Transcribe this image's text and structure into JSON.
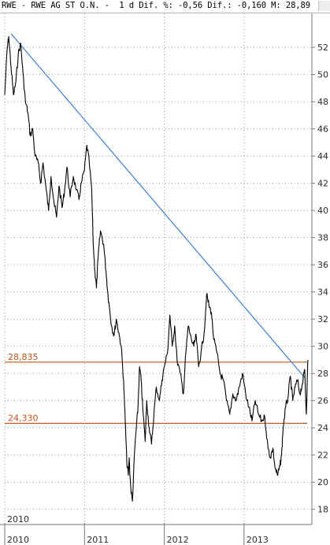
{
  "header": {
    "text": "RWE - RWE AG ST O.N. -  1 d Dif. %: -0,56 Dif.: -0,160 M: 28,89"
  },
  "colors": {
    "price": "#000000",
    "trendline": "#3a7fd5",
    "level": "#c0541a",
    "grid": "#9a9a9a",
    "axis": "#777777"
  },
  "chart_data": {
    "type": "line",
    "title": "",
    "xlabel": "",
    "ylabel": "",
    "ylim": [
      17,
      54.5
    ],
    "xlim": [
      2010.0,
      2013.85
    ],
    "grid": true,
    "y_ticks": [
      18,
      20,
      22,
      24,
      26,
      28,
      30,
      32,
      34,
      36,
      38,
      40,
      42,
      44,
      46,
      48,
      50,
      52
    ],
    "x_ticks": [
      {
        "label": "2010",
        "value": 2010.0
      },
      {
        "label": "2011",
        "value": 2011.0
      },
      {
        "label": "2012",
        "value": 2012.0
      },
      {
        "label": "2013",
        "value": 2013.0
      }
    ],
    "series": [
      {
        "x": [
          2010.0,
          2010.03,
          2010.05,
          2010.08,
          2010.11,
          2010.14,
          2010.17,
          2010.2,
          2010.23,
          2010.26,
          2010.29,
          2010.32,
          2010.35,
          2010.38,
          2010.42,
          2010.45,
          2010.48,
          2010.52,
          2010.55,
          2010.58,
          2010.62,
          2010.65,
          2010.68,
          2010.72,
          2010.75,
          2010.78,
          2010.82,
          2010.86,
          2010.9,
          2010.93,
          2010.96,
          2011.0,
          2011.03,
          2011.06,
          2011.09,
          2011.11,
          2011.13,
          2011.15,
          2011.17,
          2011.2,
          2011.24,
          2011.27,
          2011.29,
          2011.31,
          2011.34,
          2011.37,
          2011.4,
          2011.43,
          2011.46,
          2011.49,
          2011.51,
          2011.53,
          2011.55,
          2011.56,
          2011.58,
          2011.6,
          2011.63,
          2011.65,
          2011.67,
          2011.69,
          2011.71,
          2011.73,
          2011.76,
          2011.78,
          2011.81,
          2011.84,
          2011.87,
          2011.9,
          2011.94,
          2011.97,
          2012.0,
          2012.04,
          2012.07,
          2012.1,
          2012.13,
          2012.16,
          2012.2,
          2012.24,
          2012.27,
          2012.3,
          2012.34,
          2012.37,
          2012.4,
          2012.43,
          2012.46,
          2012.5,
          2012.53,
          2012.56,
          2012.59,
          2012.62,
          2012.66,
          2012.7,
          2012.74,
          2012.78,
          2012.82,
          2012.86,
          2012.9,
          2012.94,
          2012.98,
          2013.02,
          2013.06,
          2013.1,
          2013.14,
          2013.18,
          2013.22,
          2013.26,
          2013.3,
          2013.33,
          2013.36,
          2013.39,
          2013.42,
          2013.45,
          2013.47,
          2013.49,
          2013.52,
          2013.55,
          2013.58,
          2013.61,
          2013.64,
          2013.67,
          2013.7,
          2013.73,
          2013.76,
          2013.78,
          2013.8
        ],
        "y": [
          48.5,
          51.8,
          52.8,
          50.5,
          48.5,
          49.5,
          51.5,
          52.3,
          50.0,
          48.0,
          47.2,
          45.5,
          46.0,
          44.0,
          43.5,
          42.0,
          43.5,
          41.5,
          40.0,
          42.5,
          40.5,
          39.5,
          41.8,
          40.2,
          41.5,
          43.2,
          41.0,
          42.5,
          41.5,
          40.8,
          42.0,
          43.0,
          44.8,
          43.5,
          41.5,
          37.5,
          35.5,
          34.3,
          36.5,
          38.5,
          37.5,
          35.5,
          34.0,
          33.0,
          31.5,
          30.8,
          32.0,
          31.0,
          30.0,
          27.5,
          24.5,
          21.5,
          20.5,
          21.8,
          19.5,
          18.6,
          22.5,
          24.0,
          25.5,
          28.5,
          27.5,
          25.5,
          23.0,
          26.0,
          24.0,
          22.8,
          25.0,
          27.0,
          26.0,
          27.5,
          28.5,
          29.5,
          32.3,
          30.0,
          31.5,
          29.0,
          28.0,
          26.5,
          29.5,
          31.5,
          30.5,
          30.0,
          30.8,
          28.5,
          29.5,
          31.0,
          33.8,
          33.0,
          32.5,
          30.5,
          29.5,
          28.0,
          27.5,
          26.0,
          25.0,
          26.5,
          26.0,
          27.0,
          28.0,
          26.5,
          25.5,
          24.5,
          26.0,
          25.0,
          24.5,
          24.8,
          22.5,
          21.8,
          22.5,
          21.0,
          20.5,
          21.2,
          22.0,
          24.0,
          25.5,
          26.2,
          27.8,
          26.0,
          27.0,
          27.5,
          26.5,
          27.2,
          28.3,
          25.0,
          29.0
        ]
      }
    ],
    "trendline": {
      "x": [
        2010.08,
        2013.76
      ],
      "y": [
        53.0,
        27.7
      ]
    },
    "levels": [
      {
        "label": "28,835",
        "value": 28.835
      },
      {
        "label": "24,330",
        "value": 24.33
      }
    ]
  }
}
